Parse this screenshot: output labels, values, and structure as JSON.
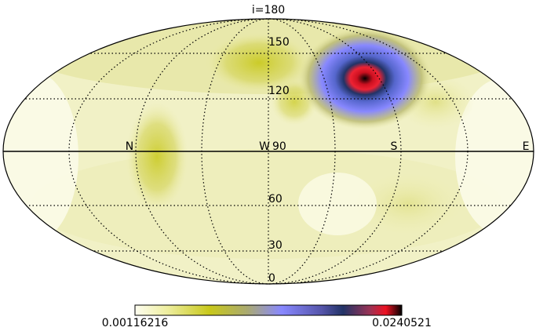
{
  "title": "i=180",
  "azimuth_labels": [
    "N",
    "W",
    "S",
    "E"
  ],
  "inclination_labels": [
    "150",
    "120",
    "90",
    "60",
    "30",
    "0"
  ],
  "colorbar": {
    "min_label": "0.00116216",
    "max_label": "0.0240521",
    "colors": [
      "#fdfdf0",
      "#eeeea0",
      "#c8c81a",
      "#aaaa50",
      "#8888ff",
      "#5555aa",
      "#223366",
      "#993355",
      "#ee1122",
      "#000000"
    ]
  },
  "hotspot": {
    "label_context": "peak near S at inclination ~130"
  }
}
